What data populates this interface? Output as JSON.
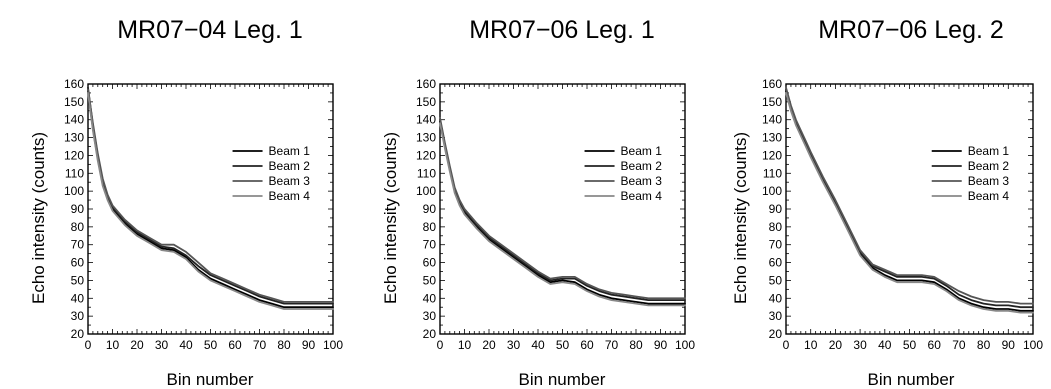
{
  "chart_data": [
    {
      "type": "line",
      "title": "MR07−04 Leg. 1",
      "xlabel": "Bin number",
      "ylabel": "Echo intensity (counts)",
      "xlim": [
        0,
        100
      ],
      "ylim": [
        20,
        160
      ],
      "x_ticks": [
        0,
        10,
        20,
        30,
        40,
        50,
        60,
        70,
        80,
        90,
        100
      ],
      "y_ticks": [
        20,
        30,
        40,
        50,
        60,
        70,
        80,
        90,
        100,
        110,
        120,
        130,
        140,
        150,
        160
      ],
      "grid": false,
      "legend": "right",
      "x": [
        0,
        2,
        4,
        6,
        8,
        10,
        15,
        20,
        25,
        30,
        35,
        40,
        45,
        50,
        55,
        60,
        65,
        70,
        75,
        80,
        85,
        90,
        95,
        100
      ],
      "series": [
        {
          "name": "Beam 1",
          "color": "#000000",
          "values": [
            156,
            135,
            118,
            104,
            96,
            90,
            82,
            76,
            72,
            68,
            67,
            63,
            56,
            51,
            48,
            45,
            42,
            39,
            37,
            35,
            35,
            35,
            35,
            35
          ]
        },
        {
          "name": "Beam 2",
          "color": "#222222",
          "values": [
            158,
            137,
            120,
            106,
            97,
            91,
            83,
            77,
            73,
            69,
            68,
            64,
            58,
            53,
            50,
            47,
            44,
            41,
            39,
            37,
            37,
            37,
            37,
            37
          ]
        },
        {
          "name": "Beam 3",
          "color": "#555555",
          "values": [
            157,
            138,
            121,
            107,
            98,
            92,
            84,
            78,
            74,
            70,
            70,
            66,
            60,
            54,
            51,
            48,
            45,
            42,
            40,
            38,
            38,
            38,
            38,
            38
          ]
        },
        {
          "name": "Beam 4",
          "color": "#888888",
          "values": [
            155,
            134,
            117,
            103,
            95,
            89,
            81,
            75,
            71,
            67,
            66,
            62,
            55,
            50,
            47,
            44,
            41,
            38,
            36,
            34,
            34,
            34,
            34,
            34
          ]
        }
      ]
    },
    {
      "type": "line",
      "title": "MR07−06 Leg. 1",
      "xlabel": "Bin number",
      "ylabel": "Echo intensity (counts)",
      "xlim": [
        0,
        100
      ],
      "ylim": [
        20,
        160
      ],
      "x_ticks": [
        0,
        10,
        20,
        30,
        40,
        50,
        60,
        70,
        80,
        90,
        100
      ],
      "y_ticks": [
        20,
        30,
        40,
        50,
        60,
        70,
        80,
        90,
        100,
        110,
        120,
        130,
        140,
        150,
        160
      ],
      "grid": false,
      "legend": "right",
      "x": [
        0,
        2,
        4,
        6,
        8,
        10,
        15,
        20,
        25,
        30,
        35,
        40,
        45,
        50,
        55,
        60,
        65,
        70,
        75,
        80,
        85,
        90,
        95,
        100
      ],
      "series": [
        {
          "name": "Beam 1",
          "color": "#000000",
          "values": [
            139,
            125,
            112,
            100,
            93,
            88,
            80,
            73,
            68,
            63,
            58,
            53,
            49,
            50,
            49,
            45,
            42,
            40,
            39,
            38,
            37,
            37,
            37,
            37
          ]
        },
        {
          "name": "Beam 2",
          "color": "#222222",
          "values": [
            140,
            126,
            113,
            101,
            94,
            89,
            81,
            74,
            69,
            64,
            59,
            54,
            50,
            51,
            51,
            47,
            44,
            42,
            41,
            40,
            39,
            39,
            39,
            39
          ]
        },
        {
          "name": "Beam 3",
          "color": "#555555",
          "values": [
            141,
            127,
            114,
            102,
            95,
            90,
            82,
            75,
            70,
            65,
            60,
            55,
            51,
            52,
            52,
            48,
            45,
            43,
            42,
            41,
            40,
            40,
            40,
            40
          ]
        },
        {
          "name": "Beam 4",
          "color": "#888888",
          "values": [
            138,
            124,
            111,
            99,
            92,
            87,
            79,
            72,
            67,
            62,
            57,
            52,
            48,
            49,
            48,
            44,
            41,
            39,
            38,
            37,
            36,
            36,
            36,
            36
          ]
        }
      ]
    },
    {
      "type": "line",
      "title": "MR07−06 Leg. 2",
      "xlabel": "Bin number",
      "ylabel": "Echo intensity (counts)",
      "xlim": [
        0,
        100
      ],
      "ylim": [
        20,
        160
      ],
      "x_ticks": [
        0,
        10,
        20,
        30,
        40,
        50,
        60,
        70,
        80,
        90,
        100
      ],
      "y_ticks": [
        20,
        30,
        40,
        50,
        60,
        70,
        80,
        90,
        100,
        110,
        120,
        130,
        140,
        150,
        160
      ],
      "grid": false,
      "legend": "right",
      "x": [
        0,
        2,
        4,
        6,
        8,
        10,
        15,
        20,
        25,
        30,
        35,
        40,
        45,
        50,
        55,
        60,
        65,
        70,
        75,
        80,
        85,
        90,
        95,
        100
      ],
      "series": [
        {
          "name": "Beam 1",
          "color": "#000000",
          "values": [
            156,
            146,
            138,
            132,
            126,
            120,
            106,
            93,
            79,
            65,
            57,
            53,
            50,
            50,
            50,
            49,
            45,
            40,
            37,
            35,
            34,
            34,
            33,
            33
          ]
        },
        {
          "name": "Beam 2",
          "color": "#222222",
          "values": [
            157,
            147,
            139,
            133,
            127,
            121,
            107,
            94,
            80,
            66,
            58,
            55,
            52,
            52,
            52,
            51,
            47,
            42,
            39,
            37,
            36,
            36,
            35,
            35
          ]
        },
        {
          "name": "Beam 3",
          "color": "#555555",
          "values": [
            158,
            148,
            140,
            134,
            128,
            122,
            108,
            95,
            81,
            67,
            59,
            56,
            53,
            53,
            53,
            52,
            48,
            44,
            41,
            39,
            38,
            38,
            37,
            37
          ]
        },
        {
          "name": "Beam 4",
          "color": "#888888",
          "values": [
            155,
            145,
            137,
            131,
            125,
            119,
            105,
            92,
            78,
            64,
            56,
            52,
            49,
            49,
            49,
            48,
            44,
            39,
            36,
            34,
            33,
            33,
            32,
            32
          ]
        }
      ]
    }
  ]
}
